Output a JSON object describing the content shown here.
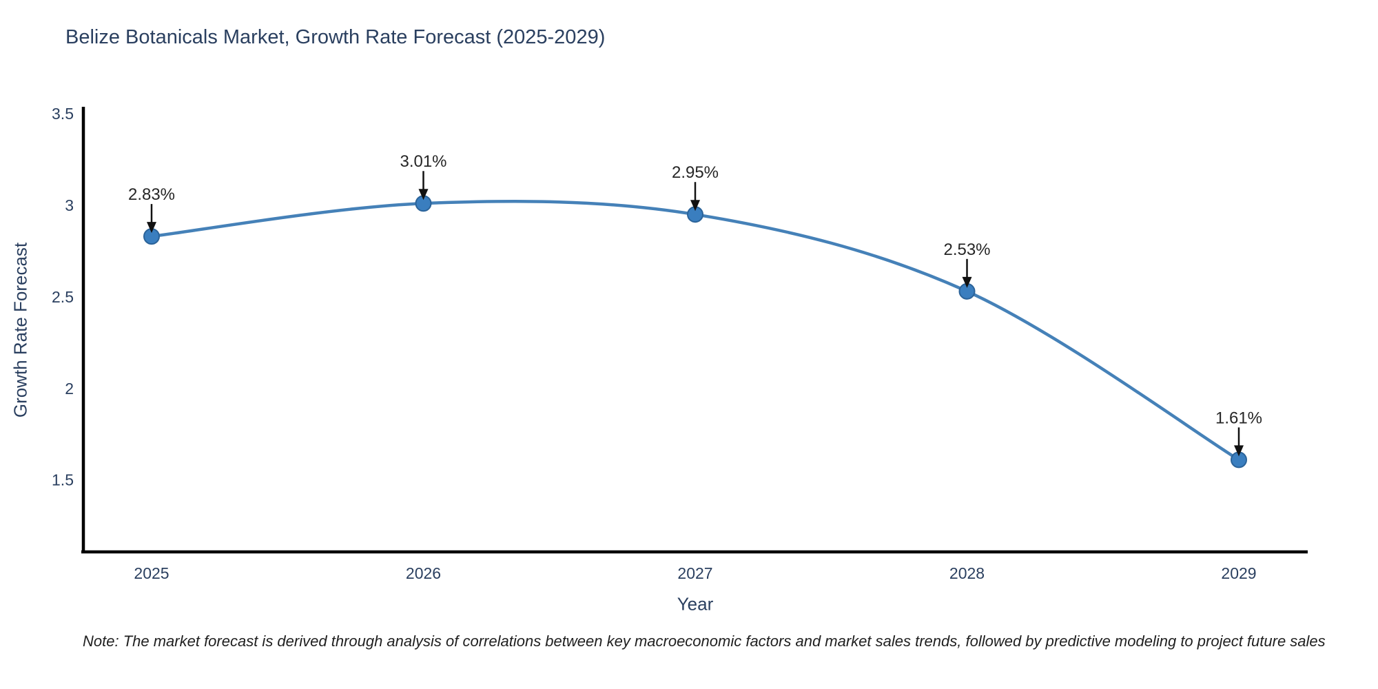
{
  "figure": {
    "title": "Belize Botanicals Market, Growth Rate Forecast (2025-2029)",
    "note": "Note: The market forecast is derived through analysis of correlations between key macroeconomic factors and market sales trends, followed by predictive modeling to project future sales"
  },
  "chart_data": {
    "type": "line",
    "title": "Belize Botanicals Market, Growth Rate Forecast (2025-2029)",
    "xlabel": "Year",
    "ylabel": "Growth Rate Forecast",
    "categories": [
      "2025",
      "2026",
      "2027",
      "2028",
      "2029"
    ],
    "values": [
      2.83,
      3.01,
      2.95,
      2.53,
      1.61
    ],
    "point_labels": [
      "2.83%",
      "3.01%",
      "2.95%",
      "2.53%",
      "1.61%"
    ],
    "ylim": [
      1.1,
      3.5
    ],
    "yticks": [
      "1.5",
      "2",
      "2.5",
      "3",
      "3.5"
    ],
    "grid": false,
    "legend_position": "none",
    "line_shape": "spline",
    "colors": {
      "line": "#4581b8",
      "marker": "#3a7ebf",
      "marker_edge": "#2b6399",
      "axis": "#000000",
      "tick_text": "#2a3f5f",
      "annotation_text": "#262626",
      "arrow": "#111111",
      "background": "#ffffff"
    }
  }
}
